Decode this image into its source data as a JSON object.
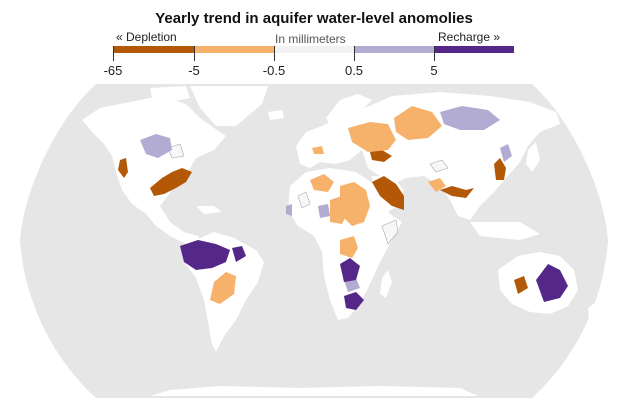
{
  "title": "Yearly trend in aquifer water-level anomolies",
  "legend": {
    "left_label": "« Depletion",
    "center_label": "In millimeters",
    "right_label": "Recharge »",
    "ticks": [
      "-65",
      "-5",
      "-0.5",
      "0.5",
      "5"
    ],
    "bins": [
      {
        "range": "-65 to -5",
        "color": "#b35806"
      },
      {
        "range": "-5 to -0.5",
        "color": "#f6b26b"
      },
      {
        "range": "-0.5 to 0.5",
        "color": "#f7f7f7"
      },
      {
        "range": "0.5 to 5",
        "color": "#b2abd2"
      },
      {
        "range": "5 and above",
        "color": "#542788"
      }
    ]
  },
  "colors": {
    "background": "#ffffff",
    "ocean": "#e6e6e6",
    "land": "#ffffff"
  },
  "aquifers": {
    "strong_depletion": [
      "California Central Valley",
      "Ogallala / High Plains",
      "Ukraine",
      "Arabian Peninsula",
      "Indus-Ganges",
      "North China Plain",
      "Western Australia"
    ],
    "moderate_depletion": [
      "Scandinavia",
      "Russian Platform",
      "West Siberia",
      "Spain",
      "Sahara / North Africa",
      "Central Africa",
      "Angola",
      "Central Asia",
      "Guarani (South America)"
    ],
    "neutral": [
      "Northern Canada",
      "Caspian region",
      "Horn of Africa",
      "West Africa"
    ],
    "moderate_recharge": [
      "Canadian Prairies",
      "Central Siberia",
      "Manchuria",
      "West Africa (coastal)",
      "Chad Basin",
      "Kalahari"
    ],
    "strong_recharge": [
      "Amazon",
      "Northeast Brazil",
      "Zambezi / Central Southern Africa",
      "South Africa",
      "Great Artesian Basin"
    ]
  }
}
